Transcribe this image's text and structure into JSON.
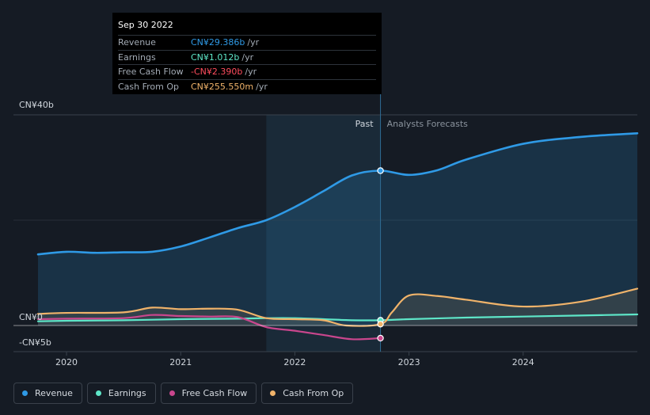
{
  "tooltip": {
    "date": "Sep 30 2022",
    "rows": [
      {
        "label": "Revenue",
        "value": "CN¥29.386b",
        "unit": "/yr",
        "color": "#2f9ae6"
      },
      {
        "label": "Earnings",
        "value": "CN¥1.012b",
        "unit": "/yr",
        "color": "#5ee6c8"
      },
      {
        "label": "Free Cash Flow",
        "value": "-CN¥2.390b",
        "unit": "/yr",
        "color": "#ff4d5e"
      },
      {
        "label": "Cash From Op",
        "value": "CN¥255.550m",
        "unit": "/yr",
        "color": "#f0b36a"
      }
    ]
  },
  "regions": {
    "past_label": "Past",
    "forecast_label": "Analysts Forecasts"
  },
  "legend": [
    {
      "label": "Revenue",
      "color": "#2f9ae6"
    },
    {
      "label": "Earnings",
      "color": "#5ee6c8"
    },
    {
      "label": "Free Cash Flow",
      "color": "#c9468d"
    },
    {
      "label": "Cash From Op",
      "color": "#f0b36a"
    }
  ],
  "chart_data": {
    "type": "line",
    "x_ticks": [
      2020,
      2021,
      2022,
      2023,
      2024
    ],
    "xlim": [
      2019.75,
      2025.0
    ],
    "ylim": [
      -5,
      40
    ],
    "y_ticks": [
      {
        "value": 40,
        "label": "CN¥40b"
      },
      {
        "value": 0,
        "label": "CN¥0"
      },
      {
        "value": -5,
        "label": "-CN¥5b"
      }
    ],
    "past_range": [
      2021.75,
      2022.75
    ],
    "highlight_x": 2022.75,
    "series": [
      {
        "name": "Revenue",
        "color": "#2f9ae6",
        "area": true,
        "points": [
          [
            2019.75,
            13.5
          ],
          [
            2020.0,
            14.0
          ],
          [
            2020.25,
            13.8
          ],
          [
            2020.5,
            13.9
          ],
          [
            2020.75,
            14.0
          ],
          [
            2021.0,
            15.0
          ],
          [
            2021.25,
            16.7
          ],
          [
            2021.5,
            18.5
          ],
          [
            2021.75,
            20.0
          ],
          [
            2022.0,
            22.5
          ],
          [
            2022.25,
            25.5
          ],
          [
            2022.5,
            28.5
          ],
          [
            2022.75,
            29.4
          ],
          [
            2023.0,
            28.6
          ],
          [
            2023.25,
            29.5
          ],
          [
            2023.5,
            31.5
          ],
          [
            2024.0,
            34.5
          ],
          [
            2024.5,
            35.8
          ],
          [
            2025.0,
            36.5
          ]
        ]
      },
      {
        "name": "Earnings",
        "color": "#5ee6c8",
        "area": false,
        "points": [
          [
            2019.75,
            0.8
          ],
          [
            2020.0,
            0.9
          ],
          [
            2020.5,
            1.0
          ],
          [
            2021.0,
            1.2
          ],
          [
            2021.5,
            1.3
          ],
          [
            2021.75,
            1.4
          ],
          [
            2022.0,
            1.4
          ],
          [
            2022.25,
            1.2
          ],
          [
            2022.5,
            1.0
          ],
          [
            2022.75,
            1.0
          ],
          [
            2023.0,
            1.2
          ],
          [
            2023.5,
            1.5
          ],
          [
            2024.0,
            1.7
          ],
          [
            2024.5,
            1.9
          ],
          [
            2025.0,
            2.1
          ]
        ]
      },
      {
        "name": "Free Cash Flow",
        "color": "#c9468d",
        "area": false,
        "points": [
          [
            2019.75,
            1.2
          ],
          [
            2020.0,
            1.3
          ],
          [
            2020.5,
            1.4
          ],
          [
            2020.75,
            2.0
          ],
          [
            2021.0,
            1.8
          ],
          [
            2021.25,
            1.7
          ],
          [
            2021.5,
            1.6
          ],
          [
            2021.75,
            -0.3
          ],
          [
            2022.0,
            -1.0
          ],
          [
            2022.25,
            -1.8
          ],
          [
            2022.5,
            -2.6
          ],
          [
            2022.75,
            -2.4
          ]
        ]
      },
      {
        "name": "Cash From Op",
        "color": "#f0b36a",
        "area": true,
        "points": [
          [
            2019.75,
            2.2
          ],
          [
            2020.0,
            2.4
          ],
          [
            2020.5,
            2.5
          ],
          [
            2020.75,
            3.4
          ],
          [
            2021.0,
            3.1
          ],
          [
            2021.25,
            3.2
          ],
          [
            2021.5,
            3.0
          ],
          [
            2021.75,
            1.4
          ],
          [
            2022.0,
            1.2
          ],
          [
            2022.25,
            1.0
          ],
          [
            2022.45,
            0.0
          ],
          [
            2022.75,
            0.26
          ],
          [
            2022.85,
            2.5
          ],
          [
            2023.0,
            5.7
          ],
          [
            2023.25,
            5.6
          ],
          [
            2023.5,
            4.9
          ],
          [
            2024.0,
            3.6
          ],
          [
            2024.5,
            4.5
          ],
          [
            2025.0,
            7.0
          ]
        ]
      }
    ]
  }
}
